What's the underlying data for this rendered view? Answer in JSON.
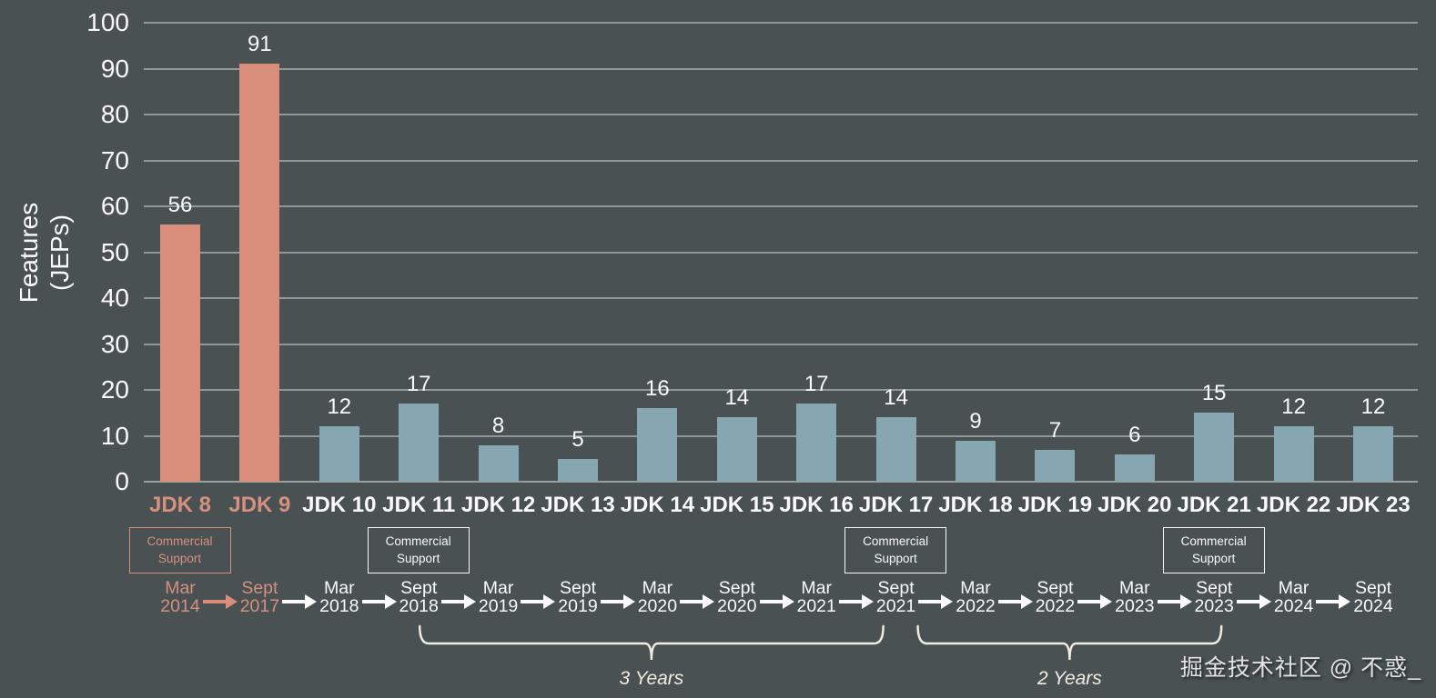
{
  "chart_data": {
    "type": "bar",
    "title": "",
    "ylabel": "Features (JEPs)",
    "ylabel_lines": [
      "Features",
      "(JEPs)"
    ],
    "ylim": [
      0,
      100
    ],
    "ytick_step": 10,
    "grid": true,
    "categories": [
      "JDK 8",
      "JDK 9",
      "JDK 10",
      "JDK 11",
      "JDK 12",
      "JDK 13",
      "JDK 14",
      "JDK 15",
      "JDK 16",
      "JDK 17",
      "JDK 18",
      "JDK 19",
      "JDK 20",
      "JDK 21",
      "JDK 22",
      "JDK 23"
    ],
    "values": [
      56,
      91,
      12,
      17,
      8,
      5,
      16,
      14,
      17,
      14,
      9,
      7,
      6,
      15,
      12,
      12
    ],
    "release_dates": [
      "Mar 2014",
      "Sept 2017",
      "Mar 2018",
      "Sept 2018",
      "Mar 2019",
      "Sept 2019",
      "Mar 2020",
      "Sept 2020",
      "Mar 2021",
      "Sept 2021",
      "Mar 2022",
      "Sept 2022",
      "Mar 2023",
      "Sept 2023",
      "Mar 2024",
      "Sept 2024"
    ],
    "highlighted_categories": [
      "JDK 8",
      "JDK 9"
    ],
    "commercial_support_categories": [
      "JDK 8",
      "JDK 11",
      "JDK 17",
      "JDK 21"
    ],
    "annotations": [
      {
        "label": "3 Years",
        "from": "Sept 2018",
        "to": "Sept 2021"
      },
      {
        "label": "2 Years",
        "from": "Sept 2021",
        "to": "Sept 2023"
      }
    ],
    "legend": null
  },
  "commercial_support_label": {
    "line1": "Commercial",
    "line2": "Support"
  },
  "watermark": {
    "text": "掘金技术社区 @ 不惑_"
  },
  "colors": {
    "background": "#495153",
    "bar": "#86a7b2",
    "bar_highlight": "#d98e7c",
    "text": "#fafafa",
    "accent_text": "#d6907f",
    "gridline": "#98a1a1",
    "brace": "#f0ecdf"
  }
}
